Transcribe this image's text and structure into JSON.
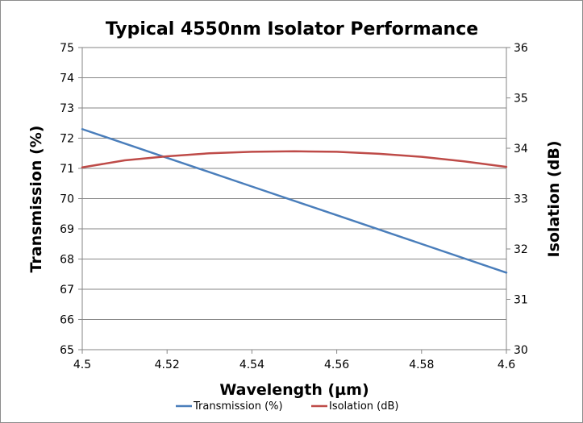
{
  "chart_data": {
    "type": "line",
    "title": "Typical 4550nm Isolator Performance",
    "xlabel": "Wavelength (µm)",
    "ylabel": "Transmission (%)",
    "y2label": "Isolation (dB)",
    "xlim": [
      4.5,
      4.6
    ],
    "ylim": [
      65,
      75
    ],
    "y2lim": [
      30,
      36
    ],
    "x_ticks": [
      "4.5",
      "4.52",
      "4.54",
      "4.56",
      "4.58",
      "4.6"
    ],
    "y_ticks": [
      "65",
      "66",
      "67",
      "68",
      "69",
      "70",
      "71",
      "72",
      "73",
      "74",
      "75"
    ],
    "y2_ticks": [
      "30",
      "31",
      "32",
      "33",
      "34",
      "35",
      "36"
    ],
    "grid": true,
    "legend_position": "bottom",
    "series": [
      {
        "name": "Transmission (%)",
        "axis": "left",
        "color": "#4a7ebb",
        "x": [
          4.5,
          4.52,
          4.54,
          4.56,
          4.58,
          4.6
        ],
        "y": [
          72.3,
          71.35,
          70.4,
          69.45,
          68.5,
          67.55
        ]
      },
      {
        "name": "Isolation (dB)",
        "axis": "right",
        "color": "#be4b48",
        "x": [
          4.5,
          4.51,
          4.52,
          4.53,
          4.54,
          4.55,
          4.56,
          4.57,
          4.58,
          4.59,
          4.6
        ],
        "y": [
          33.62,
          33.76,
          33.84,
          33.9,
          33.93,
          33.94,
          33.93,
          33.89,
          33.83,
          33.74,
          33.63
        ]
      }
    ]
  }
}
